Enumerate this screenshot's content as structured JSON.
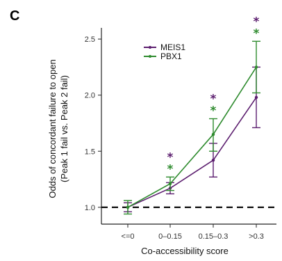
{
  "panel_label": "C",
  "chart_data": {
    "type": "line",
    "categories": [
      "<=0",
      "0–0.15",
      "0.15–0.3",
      ">0.3"
    ],
    "xlabel": "Co-accessibility score",
    "ylabel_line1": "Odds of concordant failure to open",
    "ylabel_line2": "(Peak 1 fail vs. Peak 2 fail)",
    "ylim": [
      0.85,
      2.6
    ],
    "yticks": [
      "1.0",
      "1.5",
      "2.0",
      "2.5"
    ],
    "ytick_values": [
      1.0,
      1.5,
      2.0,
      2.5
    ],
    "reference_line": 1.0,
    "legend_position": "top-left",
    "series": [
      {
        "name": "MEIS1",
        "color": "#5b1d6e",
        "values": [
          1.0,
          1.17,
          1.42,
          1.98
        ],
        "lower": [
          0.96,
          1.12,
          1.27,
          1.71
        ],
        "upper": [
          1.04,
          1.22,
          1.57,
          2.25
        ]
      },
      {
        "name": "PBX1",
        "color": "#2e8b2e",
        "values": [
          1.0,
          1.21,
          1.65,
          2.25
        ],
        "lower": [
          0.94,
          1.15,
          1.5,
          2.02
        ],
        "upper": [
          1.06,
          1.27,
          1.79,
          2.48
        ]
      }
    ],
    "significance": [
      {
        "category_index": 1,
        "marker": "*"
      },
      {
        "category_index": 2,
        "marker": "*"
      },
      {
        "category_index": 3,
        "marker": "*"
      }
    ]
  }
}
